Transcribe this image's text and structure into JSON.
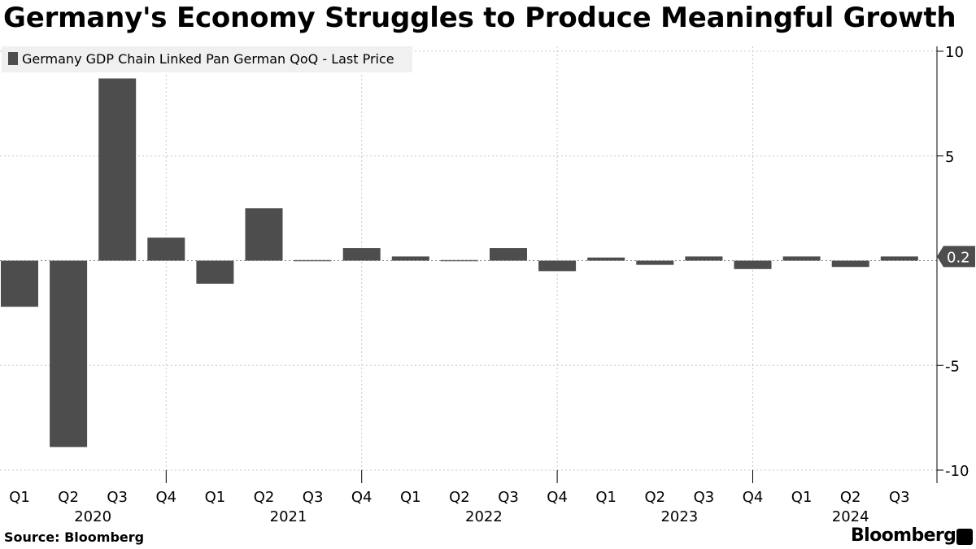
{
  "title": "Germany's Economy Struggles to Produce Meaningful Growth",
  "source": "Source: Bloomberg",
  "brand": "Bloomberg",
  "colors": {
    "bar": "#4d4d4d",
    "grid": "#c8c8c8",
    "axis": "#000000",
    "legend_bg": "#f0f0f0"
  },
  "chart_data": {
    "type": "bar",
    "series_name": "Germany GDP Chain Linked Pan German QoQ - Last Price",
    "categories": [
      "Q1 2020",
      "Q2 2020",
      "Q3 2020",
      "Q4 2020",
      "Q1 2021",
      "Q2 2021",
      "Q3 2021",
      "Q4 2021",
      "Q1 2022",
      "Q2 2022",
      "Q3 2022",
      "Q4 2022",
      "Q1 2023",
      "Q2 2023",
      "Q3 2023",
      "Q4 2023",
      "Q1 2024",
      "Q2 2024",
      "Q3 2024"
    ],
    "quarter_labels": [
      "Q1",
      "Q2",
      "Q3",
      "Q4",
      "Q1",
      "Q2",
      "Q3",
      "Q4",
      "Q1",
      "Q2",
      "Q3",
      "Q4",
      "Q1",
      "Q2",
      "Q3",
      "Q4",
      "Q1",
      "Q2",
      "Q3"
    ],
    "year_labels": [
      {
        "label": "2020",
        "index": 1.5
      },
      {
        "label": "2021",
        "index": 5.5
      },
      {
        "label": "2022",
        "index": 9.5
      },
      {
        "label": "2023",
        "index": 13.5
      },
      {
        "label": "2024",
        "index": 17
      }
    ],
    "values": [
      -2.2,
      -8.9,
      8.7,
      1.1,
      -1.1,
      2.5,
      -0.05,
      0.6,
      0.2,
      -0.05,
      0.6,
      -0.5,
      0.15,
      -0.2,
      0.2,
      -0.4,
      0.2,
      -0.3,
      0.2
    ],
    "yticks": [
      10,
      5,
      -5,
      -10
    ],
    "ytick_labels": [
      "10",
      "5",
      "-5",
      "-10"
    ],
    "ylim": [
      -10,
      10
    ],
    "last_value_label": "0.2",
    "xlabel": "",
    "ylabel": ""
  }
}
